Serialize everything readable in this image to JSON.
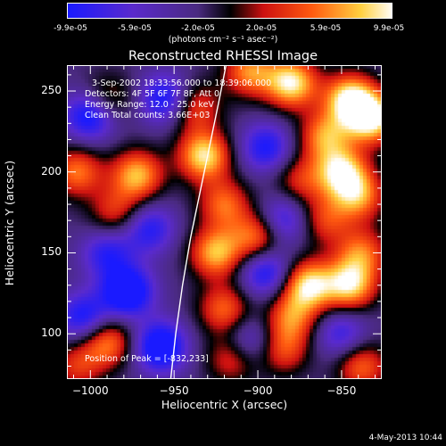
{
  "colorbar": {
    "tick_labels": [
      "-9.9e-05",
      "-5.9e-05",
      "-2.0e-05",
      "2.0e-05",
      "5.9e-05",
      "9.9e-05"
    ],
    "units": "(photons cm⁻² s⁻¹ asec⁻²)",
    "range": [
      -9.9e-05,
      9.9e-05
    ]
  },
  "info": {
    "time": "3-Sep-2002 18:33:56.000 to 18:39:06.000",
    "detectors": "Detectors: 4F 5F 6F 7F 8F, Att 0",
    "energy": "Energy Range: 12.0 - 25.0 keV",
    "clean": "Clean    Total counts: 3.66E+03",
    "peak": "Position of Peak = [-832,233]"
  },
  "timestamp": "4-May-2013 10:44",
  "chart_data": {
    "type": "heatmap",
    "title": "Reconstructed RHESSI Image",
    "xlabel": "Heliocentric X (arcsec)",
    "ylabel": "Heliocentric Y (arcsec)",
    "xlim": [
      -1014,
      -826
    ],
    "ylim": [
      72,
      266
    ],
    "xticks": [
      -1000,
      -950,
      -900,
      -850
    ],
    "yticks": [
      100,
      150,
      200,
      250
    ],
    "xtick_labels": [
      "−1000",
      "−950",
      "−900",
      "−850"
    ],
    "ytick_labels": [
      "100",
      "150",
      "200",
      "250"
    ],
    "colorscale": "hot-cold (blue → purple → black → red → orange → yellow → white)",
    "peak_position": [
      -832,
      233
    ],
    "limb_curve": [
      [
        -952,
        72
      ],
      [
        -949,
        100
      ],
      [
        -945,
        130
      ],
      [
        -940,
        160
      ],
      [
        -934,
        190
      ],
      [
        -928,
        220
      ],
      [
        -923,
        245
      ],
      [
        -919,
        266
      ]
    ],
    "blobs": [
      {
        "x": -990,
        "y": 245,
        "v": 0.3
      },
      {
        "x": -1008,
        "y": 200,
        "v": 0.55
      },
      {
        "x": -972,
        "y": 198,
        "v": 0.75
      },
      {
        "x": -955,
        "y": 245,
        "v": -0.6
      },
      {
        "x": -1000,
        "y": 235,
        "v": -0.7
      },
      {
        "x": -985,
        "y": 175,
        "v": 0.35
      },
      {
        "x": -965,
        "y": 165,
        "v": -0.45
      },
      {
        "x": -990,
        "y": 150,
        "v": -0.4
      },
      {
        "x": -978,
        "y": 126,
        "v": -0.85
      },
      {
        "x": -958,
        "y": 92,
        "v": -0.8
      },
      {
        "x": -1004,
        "y": 110,
        "v": -0.55
      },
      {
        "x": -990,
        "y": 95,
        "v": 0.6
      },
      {
        "x": -1008,
        "y": 80,
        "v": 0.3
      },
      {
        "x": -938,
        "y": 240,
        "v": 0.45
      },
      {
        "x": -932,
        "y": 210,
        "v": 0.9
      },
      {
        "x": -920,
        "y": 180,
        "v": 0.5
      },
      {
        "x": -925,
        "y": 150,
        "v": 0.75
      },
      {
        "x": -920,
        "y": 115,
        "v": 0.5
      },
      {
        "x": -915,
        "y": 85,
        "v": 0.4
      },
      {
        "x": -905,
        "y": 262,
        "v": 0.6
      },
      {
        "x": -880,
        "y": 255,
        "v": 0.95
      },
      {
        "x": -845,
        "y": 245,
        "v": 0.95
      },
      {
        "x": -832,
        "y": 233,
        "v": 1.0
      },
      {
        "x": -860,
        "y": 222,
        "v": 0.6
      },
      {
        "x": -895,
        "y": 215,
        "v": -0.5
      },
      {
        "x": -875,
        "y": 195,
        "v": 0.3
      },
      {
        "x": -850,
        "y": 200,
        "v": 0.85
      },
      {
        "x": -840,
        "y": 185,
        "v": 0.6
      },
      {
        "x": -885,
        "y": 170,
        "v": -0.45
      },
      {
        "x": -860,
        "y": 170,
        "v": 0.35
      },
      {
        "x": -900,
        "y": 160,
        "v": 0.6
      },
      {
        "x": -895,
        "y": 138,
        "v": -0.55
      },
      {
        "x": -870,
        "y": 130,
        "v": 0.9
      },
      {
        "x": -845,
        "y": 130,
        "v": 0.85
      },
      {
        "x": -838,
        "y": 150,
        "v": 0.5
      },
      {
        "x": -880,
        "y": 110,
        "v": 0.5
      },
      {
        "x": -850,
        "y": 100,
        "v": -0.35
      },
      {
        "x": -885,
        "y": 90,
        "v": 0.4
      },
      {
        "x": -905,
        "y": 95,
        "v": -0.35
      },
      {
        "x": -838,
        "y": 80,
        "v": 0.5
      }
    ]
  }
}
